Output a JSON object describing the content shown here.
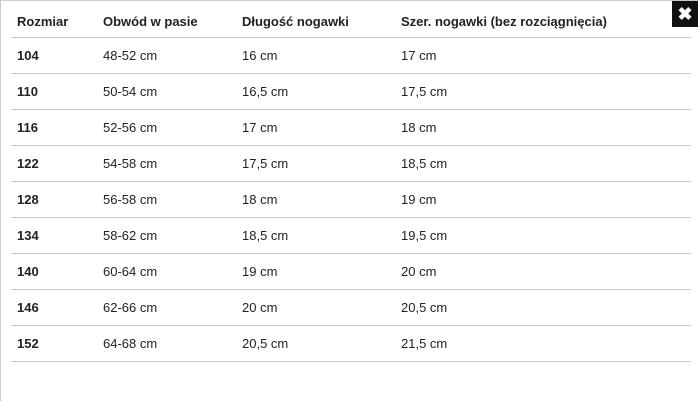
{
  "close_icon": "close-icon",
  "headers": [
    "Rozmiar",
    "Obwód w pasie",
    "Długość nogawki",
    "Szer. nogawki (bez rozciągnięcia)"
  ],
  "rows": [
    [
      "104",
      "48-52 cm",
      "16 cm",
      "17 cm"
    ],
    [
      "110",
      "50-54 cm",
      "16,5 cm",
      "17,5 cm"
    ],
    [
      "116",
      "52-56 cm",
      "17 cm",
      "18 cm"
    ],
    [
      "122",
      "54-58 cm",
      "17,5 cm",
      "18,5 cm"
    ],
    [
      "128",
      "56-58 cm",
      "18 cm",
      "19 cm"
    ],
    [
      "134",
      "58-62 cm",
      "18,5 cm",
      "19,5 cm"
    ],
    [
      "140",
      "60-64 cm",
      "19 cm",
      "20 cm"
    ],
    [
      "146",
      "62-66 cm",
      "20 cm",
      "20,5 cm"
    ],
    [
      "152",
      "64-68 cm",
      "20,5 cm",
      "21,5 cm"
    ]
  ]
}
